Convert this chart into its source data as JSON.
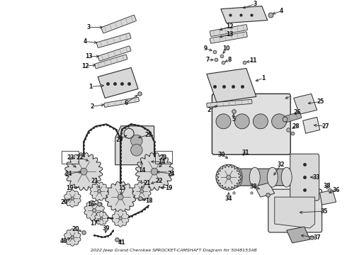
{
  "title": "2022 Jeep Grand Cherokee SPROCKET-CAMSHAFT Diagram for 5048153AB",
  "bg_color": "#ffffff",
  "line_color": "#2a2a2a",
  "text_color": "#1a1a1a",
  "fig_width": 4.9,
  "fig_height": 3.6,
  "dpi": 100
}
